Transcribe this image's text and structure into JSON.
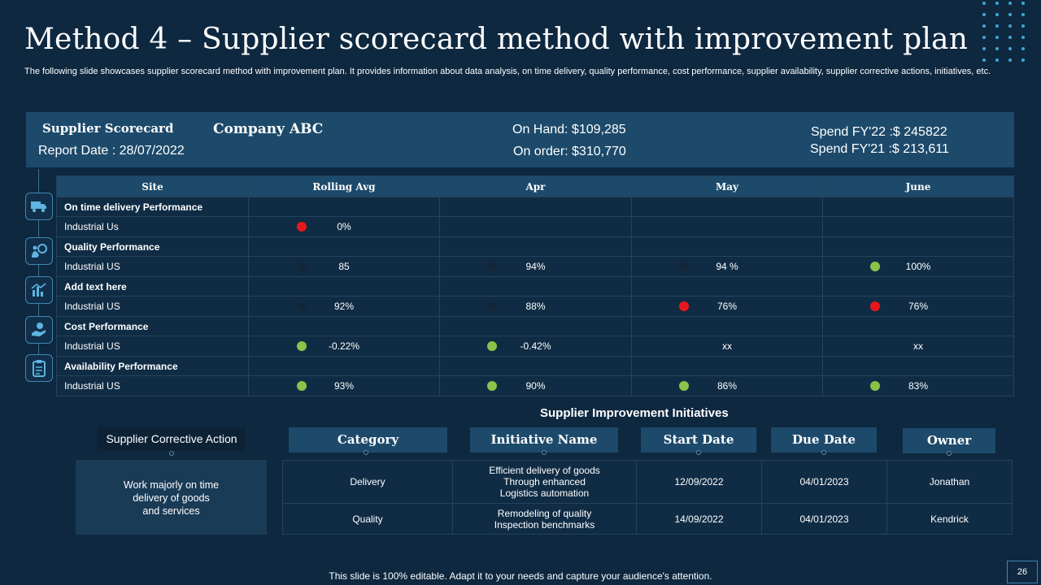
{
  "slide": {
    "title": "Method 4 – Supplier scorecard method with improvement plan",
    "subtitle": "The following slide showcases supplier scorecard method with improvement plan. It provides information about data analysis, on time delivery, quality performance, cost performance, supplier availability, supplier corrective actions, initiatives, etc.",
    "footer": "This slide is 100% editable. Adapt it to your needs and capture your audience's attention.",
    "page_number": "26"
  },
  "scorecard": {
    "title": "Supplier Scorecard",
    "report_date": "Report Date : 28/07/2022",
    "company": "Company ABC",
    "on_hand": "On Hand: $109,285",
    "on_order": "On order: $310,770",
    "spend_fy22": "Spend FY'22 :$ 245822",
    "spend_fy21": "Spend FY'21 :$ 213,611"
  },
  "table": {
    "headers": [
      "Site",
      "Rolling Avg",
      "Apr",
      "May",
      "June"
    ],
    "sections": [
      {
        "category": "On time delivery Performance",
        "icon": "delivery-truck-icon",
        "row_label": "Industrial Us",
        "cells": [
          {
            "status": "red",
            "value": "0%"
          },
          {
            "status": "",
            "value": ""
          },
          {
            "status": "",
            "value": ""
          },
          {
            "status": "",
            "value": ""
          }
        ]
      },
      {
        "category": "Quality Performance",
        "icon": "quality-check-icon",
        "row_label": "Industrial US",
        "cells": [
          {
            "status": "dark",
            "value": "85"
          },
          {
            "status": "dark",
            "value": "94%"
          },
          {
            "status": "dark",
            "value": "94 %"
          },
          {
            "status": "green",
            "value": "100%"
          }
        ]
      },
      {
        "category": "Add  text here",
        "icon": "growth-chart-icon",
        "row_label": "Industrial US",
        "cells": [
          {
            "status": "dark",
            "value": "92%"
          },
          {
            "status": "dark",
            "value": "88%"
          },
          {
            "status": "red",
            "value": "76%"
          },
          {
            "status": "red",
            "value": "76%"
          }
        ]
      },
      {
        "category": "Cost Performance",
        "icon": "money-hand-icon",
        "row_label": "Industrial US",
        "cells": [
          {
            "status": "green",
            "value": "-0.22%"
          },
          {
            "status": "green",
            "value": "-0.42%"
          },
          {
            "status": "",
            "value": "xx"
          },
          {
            "status": "",
            "value": "xx"
          }
        ]
      },
      {
        "category": "Availability  Performance",
        "icon": "clipboard-icon",
        "row_label": "Industrial US",
        "cells": [
          {
            "status": "green",
            "value": "93%"
          },
          {
            "status": "green",
            "value": "90%"
          },
          {
            "status": "green",
            "value": "86%"
          },
          {
            "status": "green",
            "value": "83%"
          }
        ]
      }
    ]
  },
  "status_colors": {
    "red": "#e8181a",
    "green": "#8bc34a",
    "dark": "#14273a"
  },
  "improvement": {
    "title": "Supplier Improvement Initiatives",
    "corrective_label": "Supplier Corrective Action",
    "corrective_text": [
      "Work majorly on time",
      "delivery  of goods",
      "and services"
    ],
    "headers": {
      "category": "Category",
      "initiative": "Initiative Name",
      "start": "Start Date",
      "due": "Due Date",
      "owner": "Owner"
    },
    "rows": [
      {
        "category": "Delivery",
        "initiative": [
          "Efficient delivery of goods",
          "Through enhanced",
          "Logistics automation"
        ],
        "start": "12/09/2022",
        "due": "04/01/2023",
        "owner": "Jonathan"
      },
      {
        "category": "Quality",
        "initiative": [
          "Remodeling of quality",
          "Inspection benchmarks"
        ],
        "start": "14/09/2022",
        "due": "04/01/2023",
        "owner": "Kendrick"
      }
    ]
  }
}
